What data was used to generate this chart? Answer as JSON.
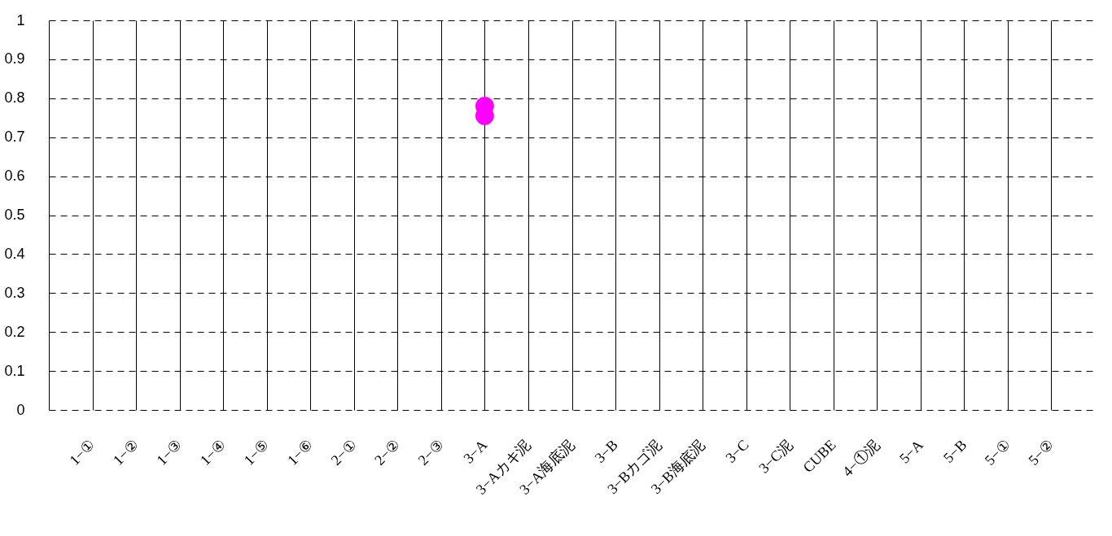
{
  "chart_data": {
    "type": "scatter",
    "categories": [
      "1−①",
      "1−②",
      "1−③",
      "1−④",
      "1−⑤",
      "1−⑥",
      "2−①",
      "2−②",
      "2−③",
      "3−A",
      "3−Aカキ泥",
      "3−A海底泥",
      "3−B",
      "3−Bカゴ泥",
      "3−B海底泥",
      "3−C",
      "3−C泥",
      "CUBE",
      "4−①泥",
      "5−A",
      "5−B",
      "5−①",
      "5−②"
    ],
    "series": [
      {
        "color": "#ff00ff",
        "values": [
          null,
          null,
          null,
          null,
          null,
          null,
          null,
          null,
          null,
          0.78,
          null,
          null,
          null,
          null,
          null,
          null,
          null,
          null,
          null,
          null,
          null,
          null,
          null
        ]
      },
      {
        "color": "#ff00ff",
        "values": [
          null,
          null,
          null,
          null,
          null,
          null,
          null,
          null,
          null,
          0.755,
          null,
          null,
          null,
          null,
          null,
          null,
          null,
          null,
          null,
          null,
          null,
          null,
          null
        ]
      }
    ],
    "ylim": [
      0,
      1
    ],
    "yticks": [
      0,
      0.1,
      0.2,
      0.3,
      0.4,
      0.5,
      0.6,
      0.7,
      0.8,
      0.9,
      1
    ],
    "grid": true,
    "marker": "circle"
  }
}
